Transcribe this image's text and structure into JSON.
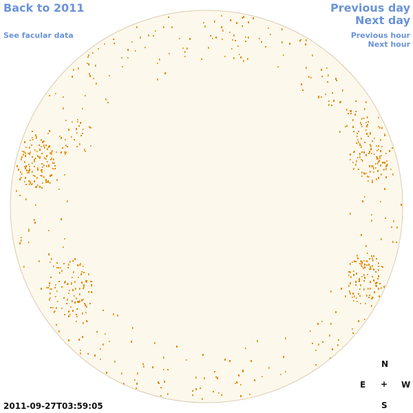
{
  "nav": {
    "back": "Back to 2011",
    "facular": "See facular data",
    "previous_day": "Previous day",
    "next_day": "Next day",
    "previous_hour": "Previous hour",
    "next_hour": "Next hour"
  },
  "compass": {
    "n": "N",
    "e": "E",
    "center": "+",
    "w": "W",
    "s": "S"
  },
  "timestamp": "2011-09-27T03:59:05",
  "colors": {
    "disk_fill": "#fdf8ec",
    "disk_edge": "#d9cbb0",
    "spot": "#e08a00",
    "link": "#6a93d8"
  }
}
